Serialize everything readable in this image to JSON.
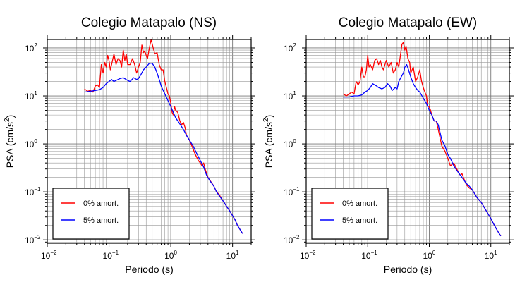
{
  "chart_data": [
    {
      "type": "line",
      "title": "Colegio Matapalo (NS)",
      "xlabel": "Periodo (s)",
      "ylabel": "PSA (cm/s²)",
      "xscale": "log",
      "yscale": "log",
      "xlim": [
        0.01,
        20
      ],
      "ylim": [
        0.0085,
        150
      ],
      "grid": true,
      "legend_position": "bottom-left",
      "xticks": [
        {
          "base": "10",
          "exp": "−2"
        },
        {
          "base": "10",
          "exp": "−1"
        },
        {
          "base": "10",
          "exp": "0"
        },
        {
          "base": "10",
          "exp": "1"
        }
      ],
      "yticks": [
        {
          "base": "10",
          "exp": "−2"
        },
        {
          "base": "10",
          "exp": "−1"
        },
        {
          "base": "10",
          "exp": "0"
        },
        {
          "base": "10",
          "exp": "1"
        },
        {
          "base": "10",
          "exp": "2"
        }
      ],
      "series": [
        {
          "name": "0% amort.",
          "color": "#ff0000",
          "points": [
            [
              0.04,
              14
            ],
            [
              0.045,
              12.5
            ],
            [
              0.05,
              13
            ],
            [
              0.055,
              12
            ],
            [
              0.06,
              16
            ],
            [
              0.065,
              17
            ],
            [
              0.07,
              15
            ],
            [
              0.075,
              45
            ],
            [
              0.08,
              30
            ],
            [
              0.085,
              50
            ],
            [
              0.09,
              40
            ],
            [
              0.095,
              70
            ],
            [
              0.1,
              55
            ],
            [
              0.105,
              35
            ],
            [
              0.11,
              45
            ],
            [
              0.12,
              75
            ],
            [
              0.13,
              45
            ],
            [
              0.14,
              60
            ],
            [
              0.15,
              55
            ],
            [
              0.16,
              40
            ],
            [
              0.17,
              90
            ],
            [
              0.18,
              55
            ],
            [
              0.19,
              75
            ],
            [
              0.2,
              45
            ],
            [
              0.22,
              45
            ],
            [
              0.24,
              60
            ],
            [
              0.26,
              45
            ],
            [
              0.28,
              30
            ],
            [
              0.3,
              40
            ],
            [
              0.32,
              50
            ],
            [
              0.34,
              115
            ],
            [
              0.36,
              80
            ],
            [
              0.38,
              85
            ],
            [
              0.4,
              70
            ],
            [
              0.42,
              60
            ],
            [
              0.45,
              100
            ],
            [
              0.48,
              150
            ],
            [
              0.52,
              100
            ],
            [
              0.55,
              75
            ],
            [
              0.6,
              80
            ],
            [
              0.65,
              45
            ],
            [
              0.7,
              35
            ],
            [
              0.75,
              35
            ],
            [
              0.8,
              20
            ],
            [
              0.85,
              15
            ],
            [
              0.9,
              11
            ],
            [
              0.95,
              10
            ],
            [
              1,
              7
            ],
            [
              1.05,
              4.5
            ],
            [
              1.1,
              4
            ],
            [
              1.15,
              6
            ],
            [
              1.2,
              5
            ],
            [
              1.3,
              4.5
            ],
            [
              1.4,
              3
            ],
            [
              1.5,
              2.5
            ],
            [
              1.6,
              2.8
            ],
            [
              1.7,
              2.2
            ],
            [
              1.8,
              1.5
            ],
            [
              2,
              1.2
            ],
            [
              2.2,
              0.9
            ],
            [
              2.5,
              0.6
            ],
            [
              2.8,
              0.45
            ],
            [
              3,
              0.4
            ],
            [
              3.2,
              0.35
            ],
            [
              3.4,
              0.4
            ],
            [
              3.6,
              0.3
            ],
            [
              4,
              0.2
            ],
            [
              4.5,
              0.16
            ],
            [
              5,
              0.13
            ],
            [
              5.5,
              0.1
            ],
            [
              6,
              0.09
            ],
            [
              7,
              0.065
            ],
            [
              8,
              0.05
            ],
            [
              9,
              0.04
            ],
            [
              10,
              0.032
            ],
            [
              11,
              0.026
            ],
            [
              12,
              0.02
            ],
            [
              13,
              0.017
            ],
            [
              14.5,
              0.0135
            ]
          ]
        },
        {
          "name": "5% amort.",
          "color": "#0000ff",
          "points": [
            [
              0.04,
              12
            ],
            [
              0.05,
              12.5
            ],
            [
              0.06,
              13
            ],
            [
              0.07,
              13.5
            ],
            [
              0.08,
              15
            ],
            [
              0.09,
              18
            ],
            [
              0.1,
              20
            ],
            [
              0.11,
              22
            ],
            [
              0.12,
              20
            ],
            [
              0.13,
              21
            ],
            [
              0.15,
              23
            ],
            [
              0.17,
              24
            ],
            [
              0.2,
              21
            ],
            [
              0.22,
              20
            ],
            [
              0.25,
              24
            ],
            [
              0.28,
              22
            ],
            [
              0.3,
              23
            ],
            [
              0.33,
              28
            ],
            [
              0.36,
              35
            ],
            [
              0.4,
              40
            ],
            [
              0.45,
              48
            ],
            [
              0.5,
              48
            ],
            [
              0.55,
              40
            ],
            [
              0.6,
              30
            ],
            [
              0.65,
              22
            ],
            [
              0.7,
              16
            ],
            [
              0.8,
              11
            ],
            [
              0.9,
              8
            ],
            [
              1,
              6
            ],
            [
              1.1,
              4.5
            ],
            [
              1.2,
              3.5
            ],
            [
              1.4,
              2.6
            ],
            [
              1.6,
              2
            ],
            [
              1.8,
              1.5
            ],
            [
              2,
              1.2
            ],
            [
              2.3,
              0.9
            ],
            [
              2.6,
              0.65
            ],
            [
              3,
              0.45
            ],
            [
              3.4,
              0.33
            ],
            [
              3.8,
              0.22
            ],
            [
              4.3,
              0.17
            ],
            [
              5,
              0.13
            ],
            [
              5.5,
              0.1
            ],
            [
              6,
              0.085
            ],
            [
              7,
              0.065
            ],
            [
              8,
              0.05
            ],
            [
              9,
              0.04
            ],
            [
              10,
              0.032
            ],
            [
              11,
              0.026
            ],
            [
              12,
              0.02
            ],
            [
              13,
              0.017
            ],
            [
              14.5,
              0.0135
            ]
          ]
        }
      ]
    },
    {
      "type": "line",
      "title": "Colegio Matapalo (EW)",
      "xlabel": "Periodo (s)",
      "ylabel": "PSA (cm/s²)",
      "xscale": "log",
      "yscale": "log",
      "xlim": [
        0.01,
        20
      ],
      "ylim": [
        0.0085,
        150
      ],
      "grid": true,
      "legend_position": "bottom-left",
      "xticks": [
        {
          "base": "10",
          "exp": "−2"
        },
        {
          "base": "10",
          "exp": "−1"
        },
        {
          "base": "10",
          "exp": "0"
        },
        {
          "base": "10",
          "exp": "1"
        }
      ],
      "yticks": [
        {
          "base": "10",
          "exp": "−2"
        },
        {
          "base": "10",
          "exp": "−1"
        },
        {
          "base": "10",
          "exp": "0"
        },
        {
          "base": "10",
          "exp": "1"
        },
        {
          "base": "10",
          "exp": "2"
        }
      ],
      "series": [
        {
          "name": "0% amort.",
          "color": "#ff0000",
          "points": [
            [
              0.04,
              11
            ],
            [
              0.045,
              10
            ],
            [
              0.05,
              11
            ],
            [
              0.055,
              12
            ],
            [
              0.06,
              11
            ],
            [
              0.065,
              20
            ],
            [
              0.07,
              17
            ],
            [
              0.075,
              20
            ],
            [
              0.08,
              40
            ],
            [
              0.085,
              25
            ],
            [
              0.09,
              25
            ],
            [
              0.095,
              35
            ],
            [
              0.1,
              70
            ],
            [
              0.105,
              40
            ],
            [
              0.11,
              45
            ],
            [
              0.12,
              35
            ],
            [
              0.13,
              55
            ],
            [
              0.14,
              60
            ],
            [
              0.15,
              45
            ],
            [
              0.16,
              55
            ],
            [
              0.17,
              40
            ],
            [
              0.18,
              35
            ],
            [
              0.2,
              55
            ],
            [
              0.22,
              40
            ],
            [
              0.24,
              50
            ],
            [
              0.26,
              30
            ],
            [
              0.28,
              35
            ],
            [
              0.3,
              50
            ],
            [
              0.32,
              40
            ],
            [
              0.34,
              70
            ],
            [
              0.36,
              120
            ],
            [
              0.38,
              130
            ],
            [
              0.4,
              90
            ],
            [
              0.42,
              110
            ],
            [
              0.45,
              60
            ],
            [
              0.48,
              50
            ],
            [
              0.5,
              30
            ],
            [
              0.55,
              40
            ],
            [
              0.6,
              20
            ],
            [
              0.65,
              25
            ],
            [
              0.7,
              35
            ],
            [
              0.75,
              20
            ],
            [
              0.8,
              15
            ],
            [
              0.85,
              12
            ],
            [
              0.9,
              10
            ],
            [
              0.95,
              6
            ],
            [
              1,
              6
            ],
            [
              1.05,
              5
            ],
            [
              1.1,
              4
            ],
            [
              1.2,
              3
            ],
            [
              1.3,
              3
            ],
            [
              1.4,
              2
            ],
            [
              1.6,
              0.9
            ],
            [
              1.8,
              0.7
            ],
            [
              2,
              0.5
            ],
            [
              2.2,
              0.35
            ],
            [
              2.5,
              0.4
            ],
            [
              2.8,
              0.3
            ],
            [
              3,
              0.25
            ],
            [
              3.2,
              0.22
            ],
            [
              3.4,
              0.24
            ],
            [
              3.7,
              0.18
            ],
            [
              4,
              0.14
            ],
            [
              4.5,
              0.12
            ],
            [
              5,
              0.11
            ],
            [
              5.5,
              0.09
            ],
            [
              6,
              0.075
            ],
            [
              7,
              0.06
            ],
            [
              8,
              0.045
            ],
            [
              9,
              0.035
            ],
            [
              10,
              0.028
            ],
            [
              11,
              0.022
            ],
            [
              12,
              0.018
            ],
            [
              13,
              0.015
            ],
            [
              14.5,
              0.012
            ]
          ]
        },
        {
          "name": "5% amort.",
          "color": "#0000ff",
          "points": [
            [
              0.04,
              9.5
            ],
            [
              0.05,
              9.5
            ],
            [
              0.06,
              10
            ],
            [
              0.07,
              10
            ],
            [
              0.08,
              10.5
            ],
            [
              0.09,
              12
            ],
            [
              0.1,
              13
            ],
            [
              0.11,
              15
            ],
            [
              0.12,
              18
            ],
            [
              0.13,
              17
            ],
            [
              0.14,
              16
            ],
            [
              0.15,
              15
            ],
            [
              0.17,
              14
            ],
            [
              0.19,
              15
            ],
            [
              0.21,
              18
            ],
            [
              0.23,
              16
            ],
            [
              0.25,
              13
            ],
            [
              0.28,
              15
            ],
            [
              0.3,
              14
            ],
            [
              0.32,
              20
            ],
            [
              0.35,
              25
            ],
            [
              0.38,
              30
            ],
            [
              0.4,
              40
            ],
            [
              0.43,
              45
            ],
            [
              0.46,
              35
            ],
            [
              0.5,
              25
            ],
            [
              0.55,
              18
            ],
            [
              0.6,
              15
            ],
            [
              0.65,
              13
            ],
            [
              0.7,
              12
            ],
            [
              0.8,
              9
            ],
            [
              0.9,
              7
            ],
            [
              1,
              5
            ],
            [
              1.1,
              4
            ],
            [
              1.2,
              3
            ],
            [
              1.3,
              3
            ],
            [
              1.4,
              2.5
            ],
            [
              1.6,
              1.2
            ],
            [
              1.8,
              0.9
            ],
            [
              2,
              0.6
            ],
            [
              2.2,
              0.5
            ],
            [
              2.5,
              0.35
            ],
            [
              2.8,
              0.28
            ],
            [
              3,
              0.25
            ],
            [
              3.5,
              0.19
            ],
            [
              4,
              0.15
            ],
            [
              4.5,
              0.13
            ],
            [
              5,
              0.11
            ],
            [
              5.5,
              0.09
            ],
            [
              6,
              0.075
            ],
            [
              7,
              0.06
            ],
            [
              8,
              0.045
            ],
            [
              9,
              0.035
            ],
            [
              10,
              0.028
            ],
            [
              11,
              0.022
            ],
            [
              12,
              0.018
            ],
            [
              13,
              0.015
            ],
            [
              14.5,
              0.012
            ]
          ]
        }
      ]
    }
  ]
}
